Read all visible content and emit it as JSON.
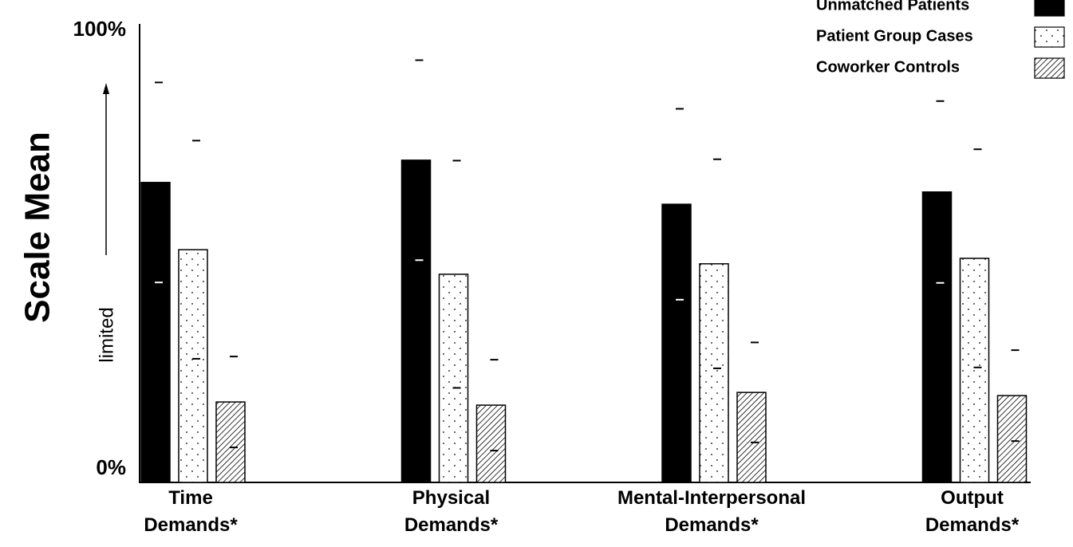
{
  "chart_data": {
    "type": "bar",
    "y_label": "Scale Mean",
    "annotation": "limited",
    "categories": [
      "Time\nDemands*",
      "Physical\nDemands*",
      "Mental-Interpersonal\nDemands*",
      "Output\nDemands*"
    ],
    "series": [
      {
        "name": "Unmatched Patients",
        "color": "#000000",
        "pattern": "solid",
        "values": [
          66,
          70.9,
          61.2,
          63.9
        ],
        "errors": [
          22,
          22,
          21,
          20
        ]
      },
      {
        "name": "Patient Group Cases",
        "color": "#000000",
        "pattern": "dots",
        "values": [
          51.2,
          45.8,
          48.1,
          49.3
        ],
        "errors": [
          24,
          25,
          23,
          24
        ]
      },
      {
        "name": "Coworker Controls",
        "color": "#000000",
        "pattern": "hatch",
        "values": [
          17.7,
          17,
          19.8,
          19.1
        ],
        "errors": [
          10,
          10,
          11,
          10
        ]
      }
    ],
    "ylim": [
      0,
      100
    ],
    "yticks": [
      {
        "value": 0,
        "label": "0%"
      },
      {
        "value": 100,
        "label": "100%"
      }
    ],
    "grid": false,
    "legend": "top-right"
  }
}
